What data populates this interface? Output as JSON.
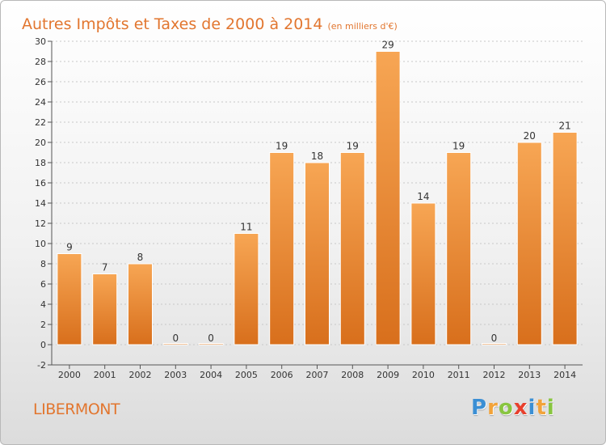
{
  "title": "Autres Impôts et Taxes de 2000 à 2014",
  "unit": "(en milliers d'€)",
  "commune": "LIBERMONT",
  "logo": {
    "letters": [
      {
        "ch": "P",
        "color": "#3b8fd4"
      },
      {
        "ch": "r",
        "color": "#f2a33a"
      },
      {
        "ch": "o",
        "color": "#88c540"
      },
      {
        "ch": "x",
        "color": "#e8402d"
      },
      {
        "ch": "i",
        "color": "#3b8fd4"
      },
      {
        "ch": "t",
        "color": "#f2a33a"
      },
      {
        "ch": "i",
        "color": "#88c540"
      }
    ]
  },
  "colors": {
    "bar_light": "#f7a654",
    "bar_dark": "#d86f1c",
    "bar_edge": "#ffffff",
    "title": "#e2762f",
    "grid": "#c8c8c8"
  },
  "chart_data": {
    "type": "bar",
    "categories": [
      "2000",
      "2001",
      "2002",
      "2003",
      "2004",
      "2005",
      "2006",
      "2007",
      "2008",
      "2009",
      "2010",
      "2011",
      "2012",
      "2013",
      "2014"
    ],
    "values": [
      9,
      7,
      8,
      0,
      0,
      11,
      19,
      18,
      19,
      29,
      14,
      19,
      0,
      20,
      21
    ],
    "ylim": [
      -2,
      30
    ],
    "yticks": [
      -2,
      0,
      2,
      4,
      6,
      8,
      10,
      12,
      14,
      16,
      18,
      20,
      22,
      24,
      26,
      28,
      30
    ],
    "grid": true,
    "xlabel": "",
    "ylabel": ""
  }
}
